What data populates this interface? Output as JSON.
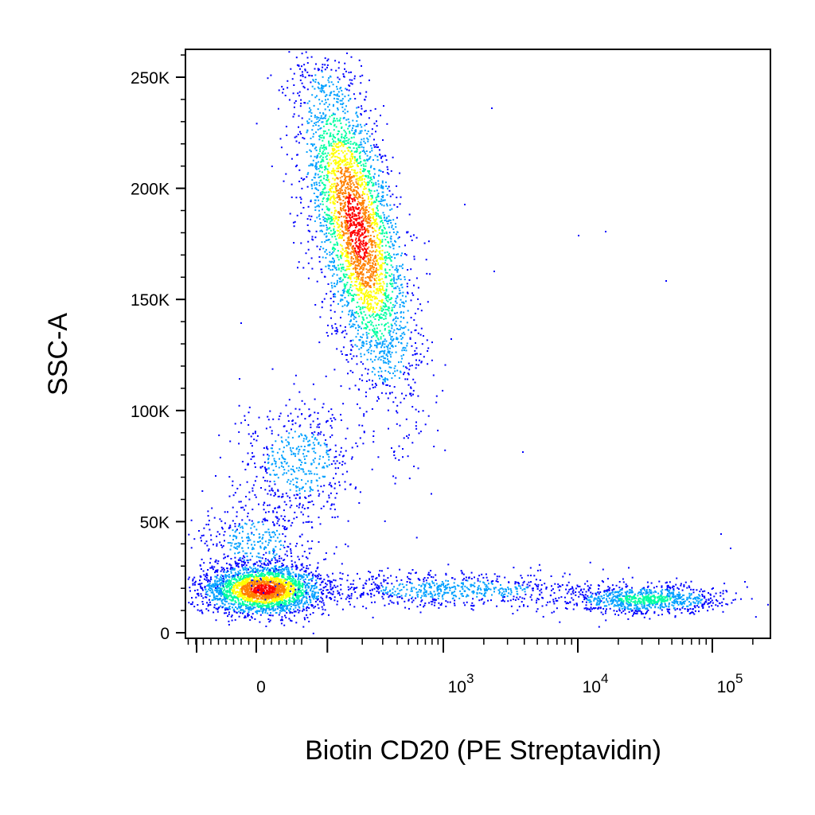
{
  "chart_data": {
    "type": "scatter",
    "subtype": "flow-cytometry density dot plot",
    "xlabel": "Biotin CD20 (PE Streptavidin)",
    "ylabel": "SSC-A",
    "x_scale": "biexponential (linear near 0, log above)",
    "x_ticks": [
      {
        "label": "0",
        "exp": "",
        "value": 0
      },
      {
        "label": "10",
        "exp": "3",
        "value": 1000
      },
      {
        "label": "10",
        "exp": "4",
        "value": 10000
      },
      {
        "label": "10",
        "exp": "5",
        "value": 100000
      }
    ],
    "y_ticks": [
      {
        "label": "0",
        "value": 0
      },
      {
        "label": "50K",
        "value": 50000
      },
      {
        "label": "100K",
        "value": 100000
      },
      {
        "label": "150K",
        "value": 150000
      },
      {
        "label": "200K",
        "value": 200000
      },
      {
        "label": "250K",
        "value": 250000
      }
    ],
    "ylim": [
      0,
      262144
    ],
    "xlim": [
      -200,
      262144
    ],
    "populations": [
      {
        "x_center": 0,
        "y_center": 20000,
        "density": "high"
      },
      {
        "x_center": 150,
        "y_center": 180000,
        "density": "high"
      },
      {
        "x_center": 30,
        "y_center": 78000,
        "density": "low"
      },
      {
        "x_center": 800,
        "y_center": 20000,
        "density": "low"
      },
      {
        "x_center": 30000,
        "y_center": 16000,
        "density": "medium"
      }
    ],
    "grid": false,
    "legend": "none",
    "colormap": [
      "#0000ff",
      "#00a0ff",
      "#00ffa0",
      "#ffff00",
      "#ff8000",
      "#ff0000"
    ]
  }
}
